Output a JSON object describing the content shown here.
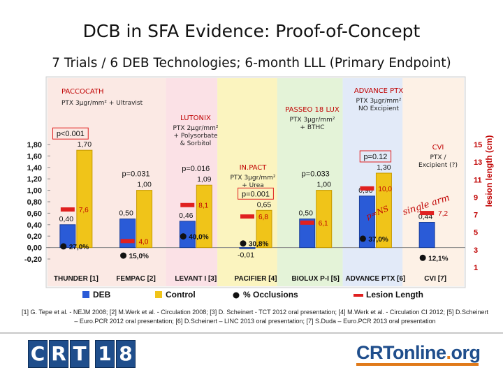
{
  "slide": {
    "title": "DCB in SFA Evidence: Proof-of-Concept",
    "subtitle": "7 Trials / 6 DEB Technologies; 6-month LLL (Primary Endpoint)",
    "references": "[1] G. Tepe et al. - NEJM 2008; [2] M.Werk et al. - Circulation 2008; [3] D. Scheinert - TCT 2012 oral presentation; [4] M.Werk et al. - Circulation CI 2012; [5] D.Scheinert – Euro.PCR 2012 oral presentation; [6] D.Scheinert – LINC 2013 oral presentation; [7] S.Duda – Euro.PCR 2013 oral presentation",
    "logo_left_letters": [
      "C",
      "R",
      "T",
      "1",
      "8"
    ],
    "logo_right": {
      "main": "CRTonline",
      "dot": ".",
      "tld": "org"
    }
  },
  "chart_data": {
    "type": "bar",
    "categories": [
      "THUNDER [1]",
      "FEMPAC [2]",
      "LEVANT I [3]",
      "PACIFIER [4]",
      "BIOLUX P-I [5]",
      "ADVANCE PTX [6]",
      "CVI [7]"
    ],
    "series": [
      {
        "name": "DEB",
        "values": [
          0.4,
          0.5,
          0.46,
          -0.01,
          0.5,
          0.9,
          0.44
        ],
        "labels": [
          "0,40",
          "0,50",
          "0,46",
          "-0,01",
          "0,50",
          "0,90",
          "0,44"
        ]
      },
      {
        "name": "Control",
        "values": [
          1.7,
          1.0,
          1.09,
          0.65,
          1.0,
          1.3,
          null
        ],
        "labels": [
          "1,70",
          "1,00",
          "1,09",
          "0,65",
          "1,00",
          "1,30",
          ""
        ]
      }
    ],
    "occlusions": {
      "name": "% Occlusions",
      "values": [
        27.0,
        15.0,
        40.0,
        30.8,
        null,
        37.0,
        12.1
      ],
      "labels": [
        "27,0%",
        "15,0%",
        "40,0%",
        "30,8%",
        "",
        "37,0%",
        "12,1%"
      ]
    },
    "lesion_length": {
      "name": "Lesion Length",
      "values": [
        7.6,
        4.0,
        8.1,
        6.8,
        6.1,
        10.0,
        7.2
      ],
      "labels": [
        "7,6",
        "4,0",
        "8,1",
        "6,8",
        "6,1",
        "10,0",
        "7,2"
      ]
    },
    "p_values": [
      "p<0.001",
      "p=0.031",
      "p=0.016",
      "p=0.001",
      "p=0.033",
      "p=0.12",
      ""
    ],
    "group_labels": [
      {
        "name": "PACCOCATH",
        "desc": "PTX 3μgr/mm² + Ultravist"
      },
      {
        "name": "LUTONIX",
        "desc": "PTX 2μgr/mm² + Polysorbate & Sorbitol"
      },
      {
        "name": "IN.PACT",
        "desc": "PTX 3μgr/mm² + Urea"
      },
      {
        "name": "PASSEO 18 LUX",
        "desc": "PTX 3μgr/mm² + BTHC"
      },
      {
        "name": "ADVANCE PTX",
        "desc": "PTX 3μgr/mm² NO Excipient"
      },
      {
        "name": "CVI",
        "desc": "PTX / Excipient (?)"
      }
    ],
    "annotations": [
      "p=NS",
      "single arm"
    ],
    "y_left": {
      "min": -0.2,
      "max": 1.8,
      "ticks": [
        "1,80",
        "1,60",
        "1,40",
        "1,20",
        "1,00",
        "0,80",
        "0,60",
        "0,40",
        "0,20",
        "0,00",
        "-0,20"
      ]
    },
    "y_right": {
      "label": "lesion length (cm)",
      "min": 1,
      "max": 15,
      "ticks": [
        "15",
        "13",
        "11",
        "9",
        "7",
        "5",
        "3",
        "1"
      ]
    },
    "legend": {
      "position": "bottom",
      "items": [
        "DEB",
        "Control",
        "% Occlusions",
        "Lesion Length"
      ]
    },
    "colors": {
      "deb": "#2a5bd7",
      "control": "#f0c419",
      "lesion": "#e02020",
      "occlusion": "#111111",
      "pval_box": "#e02020"
    }
  }
}
